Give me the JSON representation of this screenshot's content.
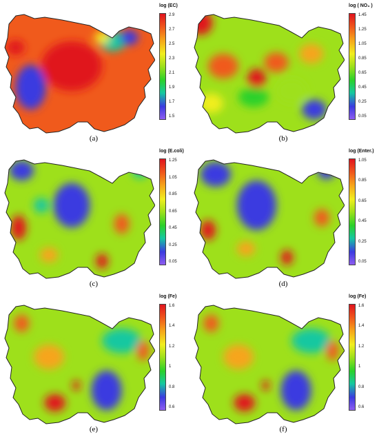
{
  "palette": [
    "#8e5df0",
    "#3b3be0",
    "#16c8a0",
    "#2ad12a",
    "#9ee01b",
    "#f1ee1e",
    "#f6a51a",
    "#f05a1c",
    "#e0141e"
  ],
  "panels": [
    {
      "id": "a",
      "caption": "(a)",
      "legend_title": "log (EC)",
      "ticks": [
        "2.9",
        "2.7",
        "2.5",
        "2.3",
        "2.1",
        "1.9",
        "1.7",
        "1.5"
      ],
      "base": 7,
      "blobs": [
        [
          0.18,
          0.62,
          0.1,
          0.18,
          1.2
        ],
        [
          0.2,
          0.6,
          0.06,
          0.09,
          0.6
        ],
        [
          0.72,
          0.25,
          0.09,
          0.08,
          2.0
        ],
        [
          0.83,
          0.22,
          0.06,
          0.06,
          1.2
        ],
        [
          0.45,
          0.45,
          0.2,
          0.2,
          7.5
        ],
        [
          0.08,
          0.3,
          0.06,
          0.06,
          7.5
        ],
        [
          0.65,
          0.22,
          0.05,
          0.05,
          4.5
        ]
      ]
    },
    {
      "id": "b",
      "caption": "(b)",
      "legend_title": "log ( NO₃ )",
      "ticks": [
        "1.45",
        "1.25",
        "1.05",
        "0.85",
        "0.65",
        "0.45",
        "0.25",
        "0.05"
      ],
      "base": 4,
      "blobs": [
        [
          0.05,
          0.1,
          0.08,
          0.1,
          8
        ],
        [
          0.2,
          0.45,
          0.1,
          0.1,
          6.5
        ],
        [
          0.42,
          0.55,
          0.06,
          0.08,
          7.5
        ],
        [
          0.55,
          0.42,
          0.08,
          0.08,
          6.5
        ],
        [
          0.78,
          0.35,
          0.08,
          0.08,
          6
        ],
        [
          0.8,
          0.8,
          0.08,
          0.08,
          1
        ],
        [
          0.4,
          0.7,
          0.1,
          0.08,
          3
        ],
        [
          0.65,
          0.65,
          0.1,
          0.1,
          3.5
        ],
        [
          0.12,
          0.75,
          0.08,
          0.08,
          4.5
        ]
      ]
    },
    {
      "id": "c",
      "caption": "(c)",
      "legend_title": "log (E.coli)",
      "ticks": [
        "1.25",
        "1.05",
        "0.85",
        "0.65",
        "0.45",
        "0.25",
        "0.05"
      ],
      "base": 4,
      "blobs": [
        [
          0.45,
          0.4,
          0.12,
          0.18,
          0.5
        ],
        [
          0.12,
          0.12,
          0.08,
          0.08,
          1
        ],
        [
          0.1,
          0.58,
          0.05,
          0.1,
          7.5
        ],
        [
          0.65,
          0.85,
          0.04,
          0.06,
          7.5
        ],
        [
          0.78,
          0.55,
          0.05,
          0.08,
          6.5
        ],
        [
          0.3,
          0.8,
          0.06,
          0.06,
          6
        ],
        [
          0.9,
          0.12,
          0.05,
          0.06,
          1.5
        ],
        [
          0.25,
          0.4,
          0.05,
          0.06,
          2
        ]
      ]
    },
    {
      "id": "d",
      "caption": "(d)",
      "legend_title": "log (Enter.)",
      "ticks": [
        "1.05",
        "0.85",
        "0.65",
        "0.45",
        "0.25",
        "0.05"
      ],
      "base": 4,
      "blobs": [
        [
          0.42,
          0.4,
          0.13,
          0.2,
          0.8
        ],
        [
          0.15,
          0.15,
          0.1,
          0.1,
          1.2
        ],
        [
          0.88,
          0.12,
          0.06,
          0.07,
          1.2
        ],
        [
          0.1,
          0.6,
          0.05,
          0.08,
          7.5
        ],
        [
          0.62,
          0.82,
          0.04,
          0.06,
          7.5
        ],
        [
          0.85,
          0.5,
          0.05,
          0.07,
          6.8
        ],
        [
          0.35,
          0.75,
          0.06,
          0.06,
          6
        ]
      ]
    },
    {
      "id": "e",
      "caption": "(e)",
      "legend_title": "log (Fe)",
      "ticks": [
        "1.6",
        "1.4",
        "1.2",
        "1",
        "0.8",
        "0.6"
      ],
      "base": 4,
      "blobs": [
        [
          0.68,
          0.72,
          0.1,
          0.16,
          0.6
        ],
        [
          0.78,
          0.32,
          0.13,
          0.1,
          1.5
        ],
        [
          0.34,
          0.82,
          0.07,
          0.07,
          7.8
        ],
        [
          0.48,
          0.68,
          0.025,
          0.04,
          7.5
        ],
        [
          0.12,
          0.18,
          0.05,
          0.07,
          6.5
        ],
        [
          0.92,
          0.4,
          0.04,
          0.08,
          6.5
        ],
        [
          0.3,
          0.45,
          0.1,
          0.1,
          5.5
        ]
      ]
    },
    {
      "id": "f",
      "caption": "(f)",
      "legend_title": "log (Fe)",
      "ticks": [
        "1.6",
        "1.4",
        "1.2",
        "1",
        "0.8",
        "0.6"
      ],
      "base": 4,
      "blobs": [
        [
          0.68,
          0.72,
          0.1,
          0.16,
          0.6
        ],
        [
          0.78,
          0.32,
          0.13,
          0.1,
          1.5
        ],
        [
          0.34,
          0.82,
          0.07,
          0.07,
          7.8
        ],
        [
          0.48,
          0.68,
          0.025,
          0.04,
          7.5
        ],
        [
          0.12,
          0.18,
          0.05,
          0.07,
          6.5
        ],
        [
          0.92,
          0.4,
          0.04,
          0.08,
          6.5
        ],
        [
          0.3,
          0.45,
          0.1,
          0.1,
          5.5
        ]
      ]
    }
  ]
}
